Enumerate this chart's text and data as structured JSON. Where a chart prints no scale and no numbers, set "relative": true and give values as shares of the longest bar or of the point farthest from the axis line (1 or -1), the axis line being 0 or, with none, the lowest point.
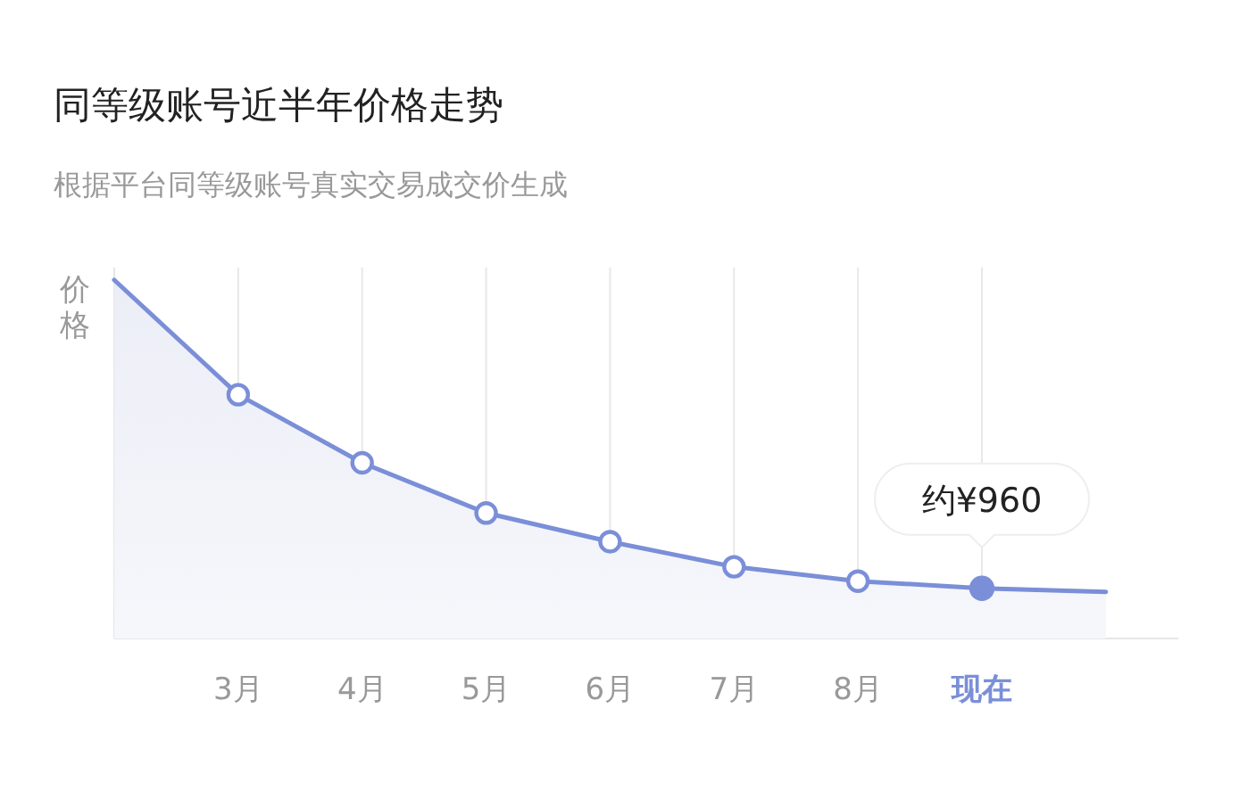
{
  "chart_data": {
    "type": "area",
    "title": "同等级账号近半年价格走势",
    "subtitle": "根据平台同等级账号真实交易成交价生成",
    "ylabel": "价格",
    "categories": [
      null,
      "3月",
      "4月",
      "5月",
      "6月",
      "7月",
      "8月",
      "现在",
      null
    ],
    "series": [
      {
        "color": "#7b8fd8",
        "values": [
          1,
          0.68,
          0.49,
          0.35,
          0.27,
          0.2,
          0.16,
          0.14,
          0.13
        ]
      }
    ],
    "relative": true,
    "grid": "x",
    "marker": "circle",
    "line_style": "solid",
    "annotations": [
      {
        "text": "约¥960",
        "x": "现在",
        "y": 0.14
      }
    ]
  }
}
